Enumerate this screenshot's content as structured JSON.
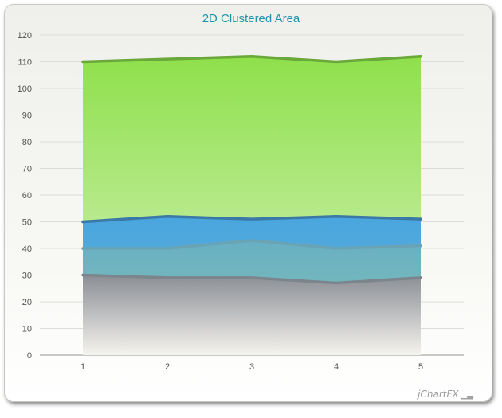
{
  "chart_data": {
    "type": "area",
    "title": "2D Clustered Area",
    "categories": [
      "1",
      "2",
      "3",
      "4",
      "5"
    ],
    "ylim": [
      0,
      120
    ],
    "yticks": [
      0,
      10,
      20,
      30,
      40,
      50,
      60,
      70,
      80,
      90,
      100,
      110,
      120
    ],
    "grid": true,
    "series": [
      {
        "values": [
          110,
          111,
          112,
          110,
          112
        ],
        "fill_top": "#8fe04c",
        "fill_bottom": "#d8f2c0",
        "line": "#6aa83a"
      },
      {
        "values": [
          50,
          52,
          51,
          52,
          51
        ],
        "fill_top": "#4aa6de",
        "fill_bottom": "#66b2d6",
        "line": "#3a78a8"
      },
      {
        "values": [
          40,
          40,
          43,
          40,
          41
        ],
        "fill_top": "#6cb0c0",
        "fill_bottom": "#8cc8a8",
        "line": "#6aa4b4"
      },
      {
        "values": [
          30,
          29,
          29,
          27,
          29
        ],
        "fill_top": "#8a8e94",
        "fill_bottom": "#f5f3ee",
        "line": "#7c848c"
      }
    ]
  },
  "branding": {
    "text": "jChartFX",
    "icon": "chart-logo-icon"
  }
}
